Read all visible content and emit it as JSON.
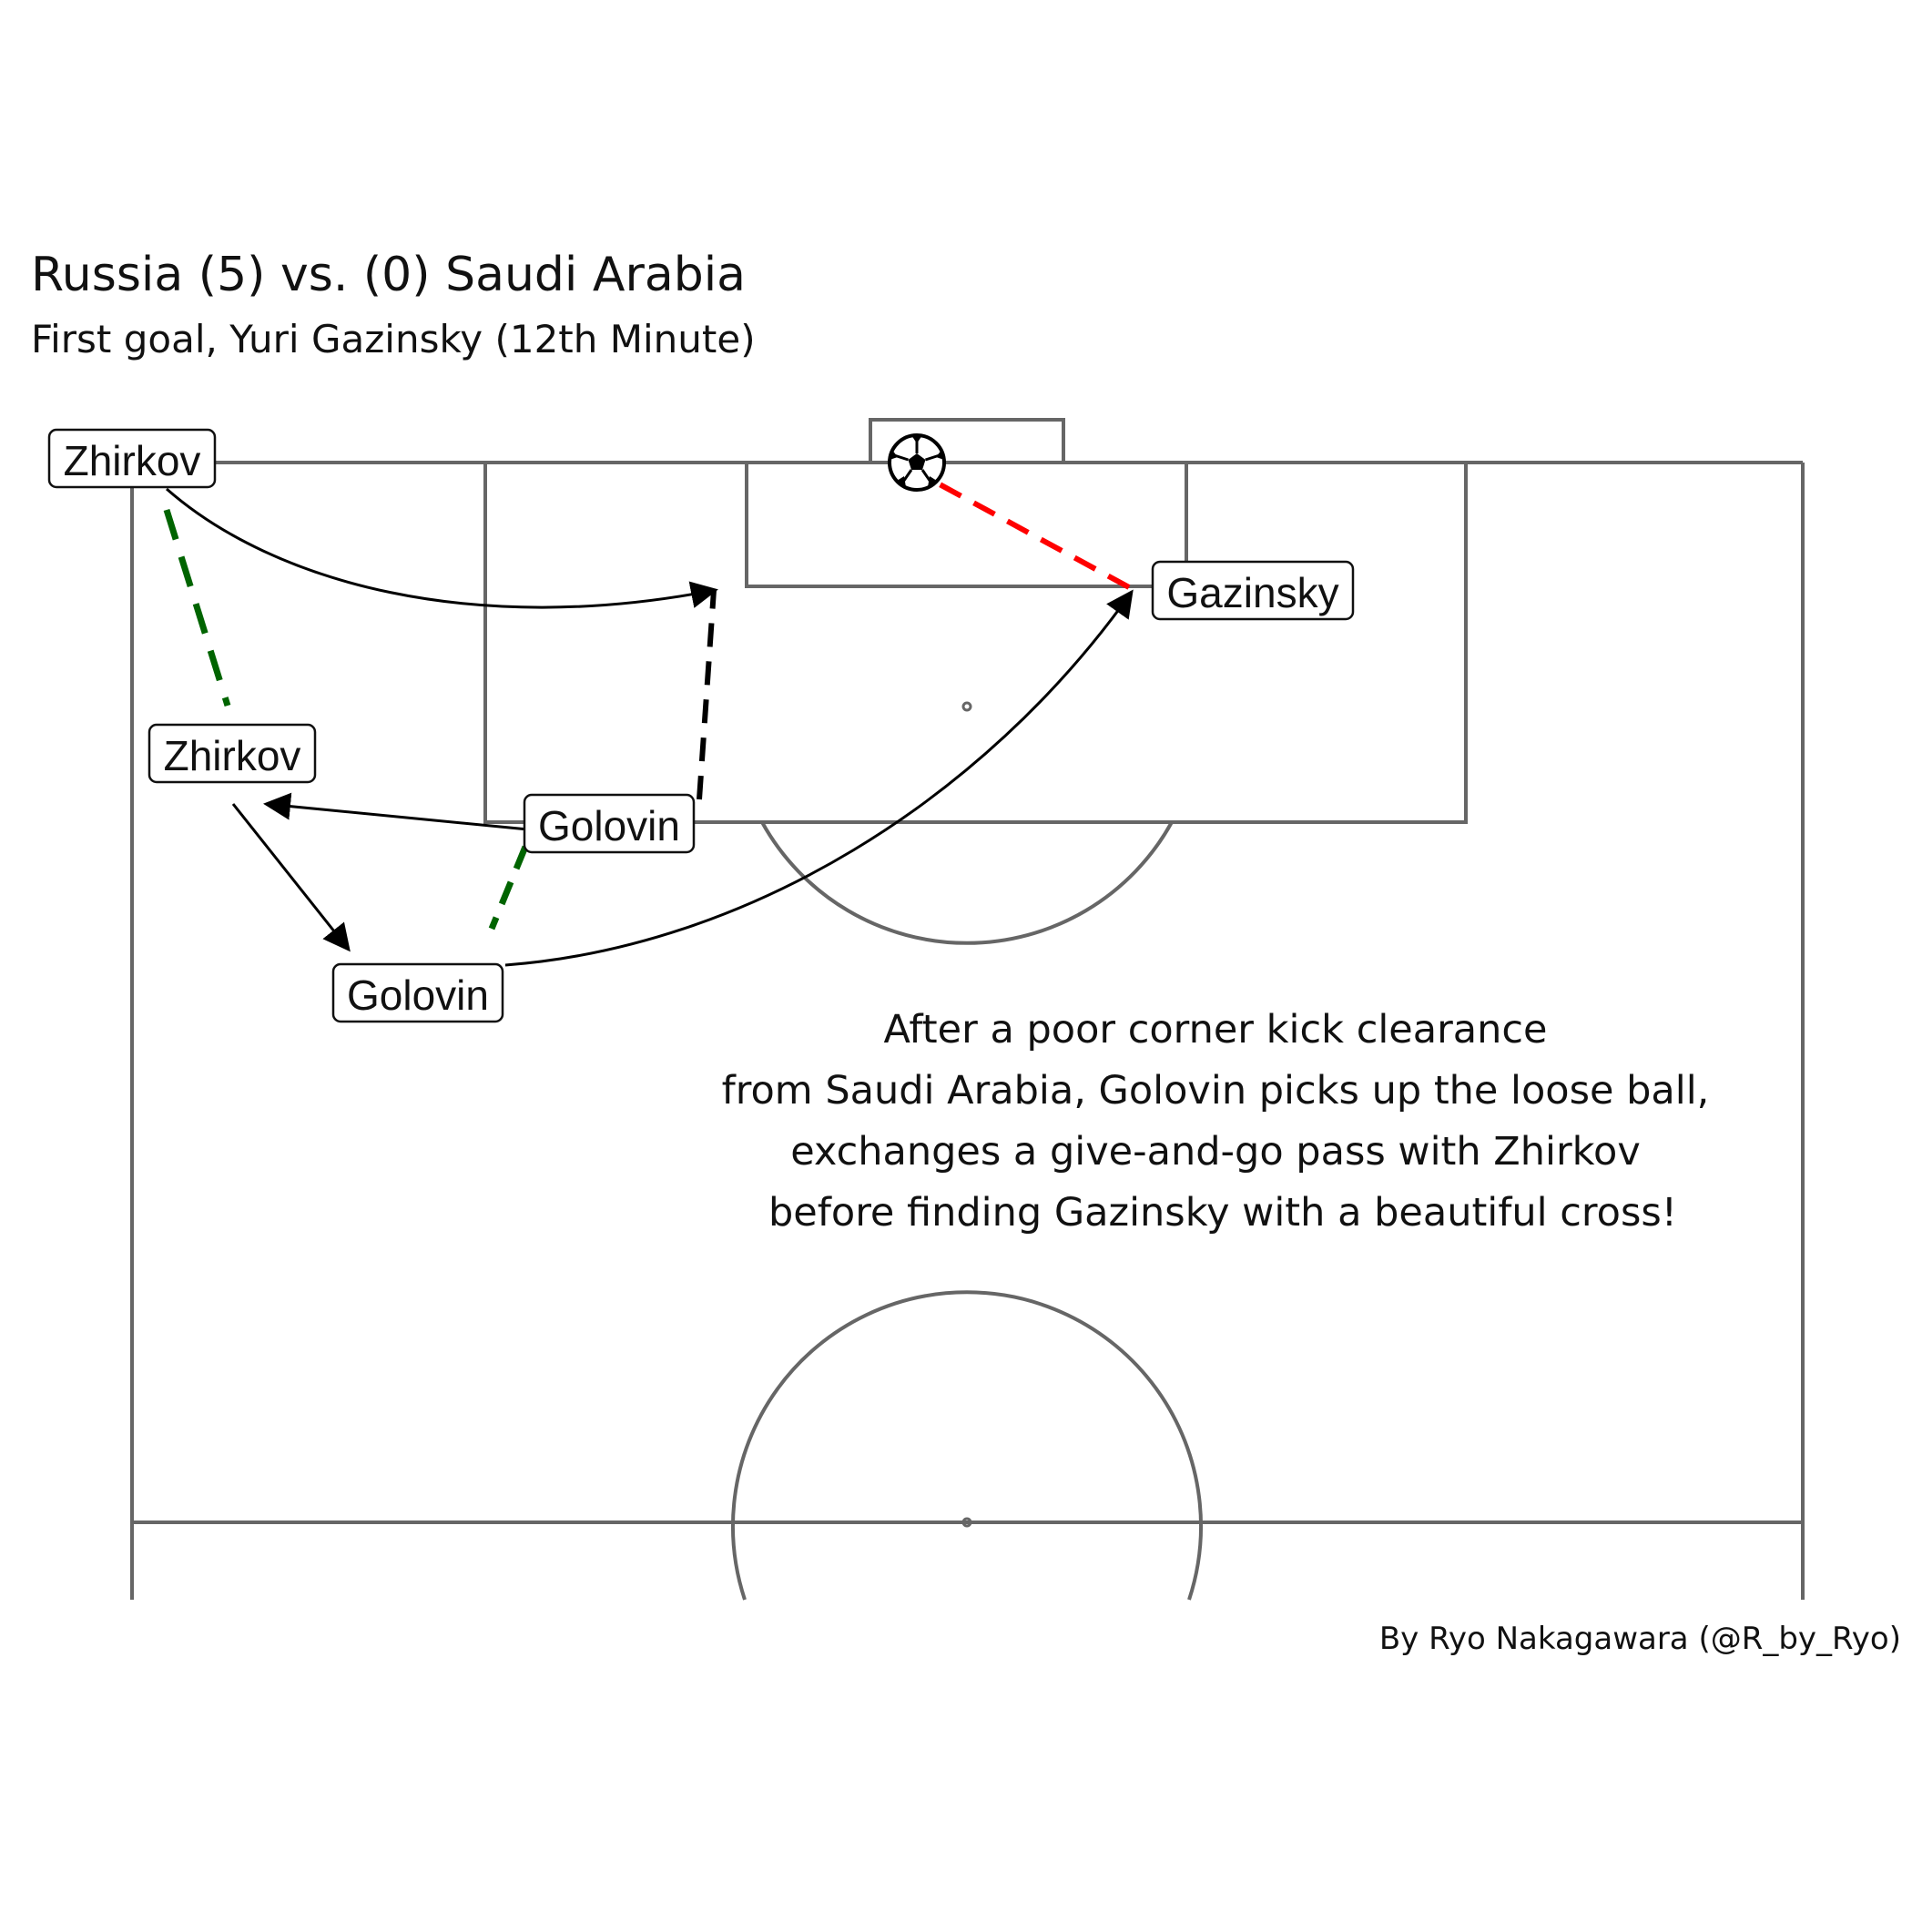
{
  "header": {
    "title": "Russia (5) vs. (0) Saudi Arabia",
    "subtitle": "First goal, Yuri Gazinsky (12th Minute)"
  },
  "players": {
    "zhirkov_1": "Zhirkov",
    "zhirkov_2": "Zhirkov",
    "golovin_1": "Golovin",
    "golovin_2": "Golovin",
    "gazinsky": "Gazinsky"
  },
  "annotation": {
    "line1": "After a poor corner kick clearance",
    "line2": "from Saudi Arabia, Golovin picks up the loose ball,",
    "line3": "exchanges a give-and-go pass with Zhirkov",
    "line4": "before finding Gazinsky with a beautiful cross!"
  },
  "caption": "By Ryo Nakagawara (@R_by_Ryo)",
  "colors": {
    "pitch_lines": "#666666",
    "pass": "#000000",
    "run_dribble": "#006400",
    "shot": "#ff0000"
  },
  "icons": {
    "ball": "soccer-ball-icon"
  }
}
